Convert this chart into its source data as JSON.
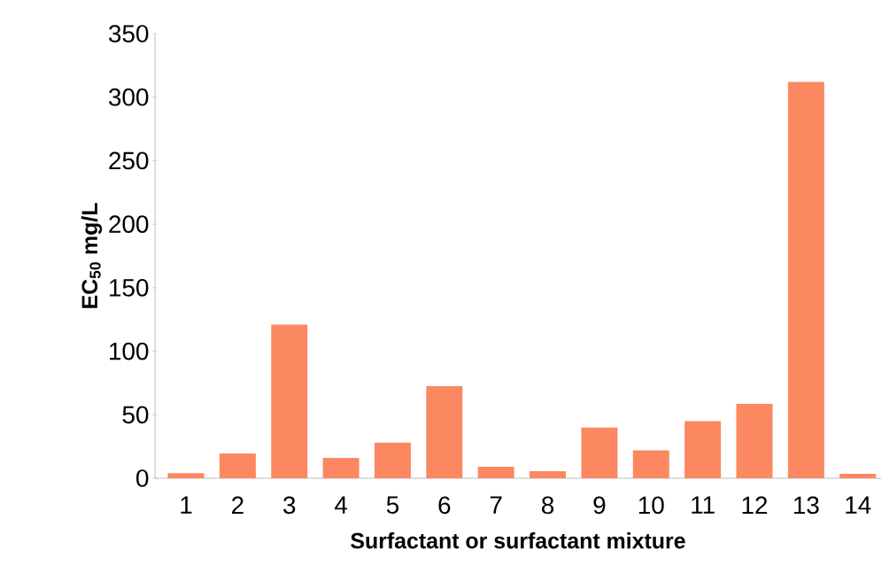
{
  "chart_data": {
    "type": "bar",
    "xlabel": "Surfactant or surfactant mixture",
    "ylabel": "EC$_{50}$ mg/L",
    "categories": [
      "1",
      "2",
      "3",
      "4",
      "5",
      "6",
      "7",
      "8",
      "9",
      "10",
      "11",
      "12",
      "13",
      "14"
    ],
    "values": [
      4,
      19.5,
      121,
      16,
      28,
      72.5,
      9,
      5.5,
      40,
      22,
      45,
      58.5,
      312,
      3.5
    ],
    "color": "#fc8862",
    "ylim": [
      0,
      350
    ],
    "yticks": [
      0,
      50,
      100,
      150,
      200,
      250,
      300,
      350
    ],
    "grid": false
  }
}
